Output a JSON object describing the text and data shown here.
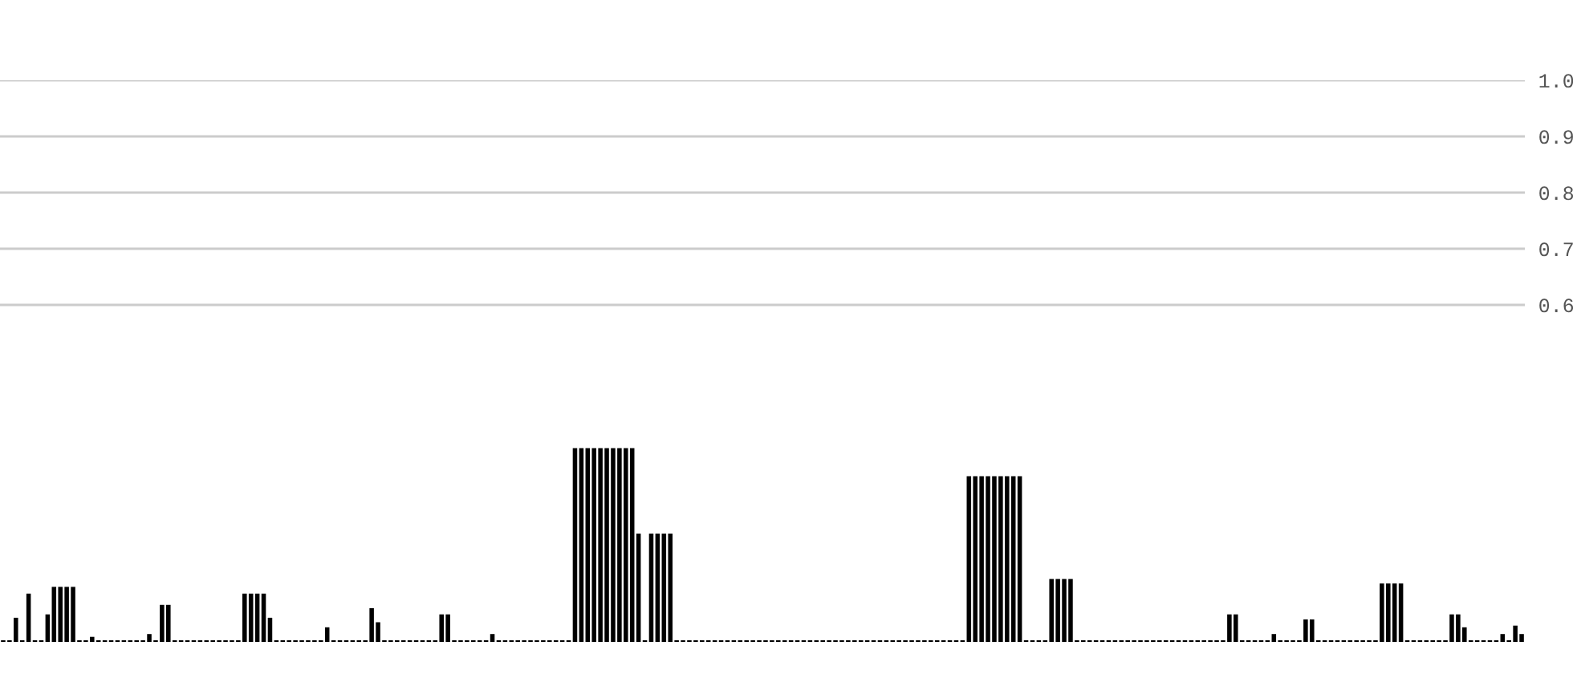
{
  "chart_data": {
    "type": "bar",
    "color": "#000000",
    "grid": "y",
    "ylim": [
      0,
      1.0
    ],
    "yticks": [
      {
        "value": 0.6,
        "label": "0.6"
      },
      {
        "value": 0.7,
        "label": "0.7"
      },
      {
        "value": 0.8,
        "label": "0.8"
      },
      {
        "value": 0.9,
        "label": "0.9"
      },
      {
        "value": 1.0,
        "label": "1.0"
      }
    ],
    "categories": [
      null,
      null,
      null,
      null,
      null,
      null,
      null,
      null,
      null,
      null,
      null,
      null,
      null,
      null,
      null,
      null,
      null,
      null,
      null,
      null,
      null,
      null,
      null,
      null,
      null,
      null,
      null,
      null,
      null,
      null,
      null,
      null,
      null,
      null,
      null,
      null,
      null,
      null,
      null,
      null,
      null,
      null,
      null,
      null,
      null,
      null,
      null,
      null,
      null,
      null,
      null,
      null,
      null,
      null,
      null,
      null,
      null,
      null,
      null,
      null,
      null,
      null,
      null,
      null,
      null,
      null,
      null,
      null,
      null,
      null,
      null,
      null,
      null,
      null,
      null,
      null,
      null,
      null,
      null,
      null,
      null,
      null,
      null,
      null,
      null,
      null,
      null,
      null,
      null,
      null,
      null,
      null,
      null,
      null,
      null,
      null,
      null,
      null,
      null,
      null,
      null,
      null,
      null,
      null,
      null,
      null,
      null,
      null,
      null,
      null,
      null,
      null,
      null,
      null,
      null,
      null,
      null,
      null,
      null,
      null,
      null,
      null,
      null,
      null,
      null,
      null,
      null,
      null,
      null,
      null,
      null,
      null,
      null,
      null,
      null,
      null,
      null,
      null,
      null,
      null,
      null,
      null,
      null,
      null,
      null,
      null,
      null,
      null,
      null,
      null,
      null,
      null,
      null,
      null,
      null,
      null,
      null,
      null,
      null,
      null,
      null,
      null,
      null,
      null,
      null,
      null,
      null,
      null,
      null,
      null,
      null,
      null,
      null,
      null,
      null,
      null,
      null,
      null,
      null,
      null,
      null,
      null,
      null,
      null,
      null,
      null,
      null,
      null,
      null,
      null,
      null,
      null,
      null,
      null,
      null,
      null,
      null,
      null,
      null,
      null,
      null,
      null,
      null,
      null,
      null,
      null,
      null,
      null,
      null,
      null,
      null,
      null,
      null,
      null,
      null,
      null,
      null,
      null,
      null,
      null,
      null,
      null,
      null,
      null,
      null,
      null,
      null,
      null,
      null,
      null,
      null,
      null,
      null,
      null,
      null,
      null,
      null,
      null,
      null,
      null
    ],
    "values": [
      0.003,
      0.003,
      0.043,
      0.003,
      0.086,
      0.003,
      0.003,
      0.049,
      0.098,
      0.098,
      0.098,
      0.098,
      0.003,
      0.003,
      0.009,
      0.003,
      0.003,
      0.003,
      0.003,
      0.003,
      0.003,
      0.003,
      0.003,
      0.014,
      0.003,
      0.066,
      0.066,
      0.003,
      0.003,
      0.003,
      0.003,
      0.003,
      0.003,
      0.003,
      0.003,
      0.003,
      0.003,
      0.003,
      0.086,
      0.086,
      0.086,
      0.086,
      0.043,
      0.003,
      0.003,
      0.003,
      0.003,
      0.003,
      0.003,
      0.003,
      0.003,
      0.026,
      0.003,
      0.003,
      0.003,
      0.003,
      0.003,
      0.003,
      0.06,
      0.035,
      0.003,
      0.003,
      0.003,
      0.003,
      0.003,
      0.003,
      0.003,
      0.003,
      0.003,
      0.049,
      0.049,
      0.003,
      0.003,
      0.003,
      0.003,
      0.003,
      0.003,
      0.014,
      0.003,
      0.003,
      0.003,
      0.003,
      0.003,
      0.003,
      0.003,
      0.003,
      0.003,
      0.003,
      0.003,
      0.003,
      0.345,
      0.345,
      0.345,
      0.345,
      0.345,
      0.345,
      0.345,
      0.345,
      0.345,
      0.345,
      0.193,
      0.003,
      0.193,
      0.193,
      0.193,
      0.193,
      0.003,
      0.003,
      0.003,
      0.003,
      0.003,
      0.003,
      0.003,
      0.003,
      0.003,
      0.003,
      0.003,
      0.003,
      0.003,
      0.003,
      0.003,
      0.003,
      0.003,
      0.003,
      0.003,
      0.003,
      0.003,
      0.003,
      0.003,
      0.003,
      0.003,
      0.003,
      0.003,
      0.003,
      0.003,
      0.003,
      0.003,
      0.003,
      0.003,
      0.003,
      0.003,
      0.003,
      0.003,
      0.003,
      0.003,
      0.003,
      0.003,
      0.003,
      0.003,
      0.003,
      0.003,
      0.003,
      0.295,
      0.295,
      0.295,
      0.295,
      0.295,
      0.295,
      0.295,
      0.295,
      0.295,
      0.003,
      0.003,
      0.003,
      0.003,
      0.112,
      0.112,
      0.112,
      0.112,
      0.003,
      0.003,
      0.003,
      0.003,
      0.003,
      0.003,
      0.003,
      0.003,
      0.003,
      0.003,
      0.003,
      0.003,
      0.003,
      0.003,
      0.003,
      0.003,
      0.003,
      0.003,
      0.003,
      0.003,
      0.003,
      0.003,
      0.003,
      0.003,
      0.049,
      0.049,
      0.003,
      0.003,
      0.003,
      0.003,
      0.003,
      0.014,
      0.003,
      0.003,
      0.003,
      0.003,
      0.04,
      0.04,
      0.003,
      0.003,
      0.003,
      0.003,
      0.003,
      0.003,
      0.003,
      0.003,
      0.003,
      0.003,
      0.104,
      0.104,
      0.104,
      0.104,
      0.003,
      0.003,
      0.003,
      0.003,
      0.003,
      0.003,
      0.003,
      0.049,
      0.049,
      0.026,
      0.003,
      0.003,
      0.003,
      0.003,
      0.003,
      0.014,
      0.003,
      0.029,
      0.014
    ]
  }
}
